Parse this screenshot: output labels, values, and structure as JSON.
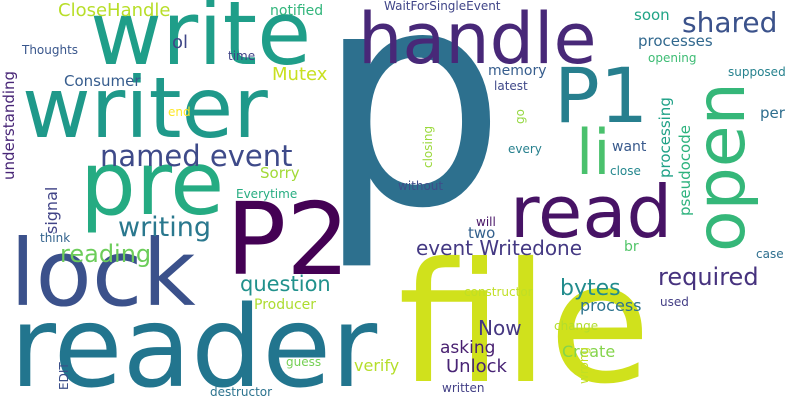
{
  "palette": {
    "p": "#2d708e",
    "file": "#d0e11c",
    "reader": "#22758e",
    "write": "#1f9e89",
    "writer": "#1f998a",
    "lock": "#3b518b",
    "pre": "#25ab82",
    "P2": "#440154",
    "P1": "#277f8e",
    "read": "#471365",
    "handle": "#482878",
    "open": "#35b779",
    "li": "#4ac16d",
    "named_event": "#3e4a89",
    "writing": "#2a788e",
    "required": "#46327e",
    "shared": "#3b528b",
    "event_writedone": "#443983",
    "reading": "#6ccd5a",
    "question": "#21918c",
    "bytes": "#228c8d",
    "now": "#453781",
    "unlock": "#482475",
    "asking": "#481f70",
    "create": "#84d44b",
    "verify": "#b5de2b",
    "closehandle": "#b8de29",
    "mutex": "#c8e020",
    "consumer": "#365c8d",
    "processes": "#31688e",
    "memory": "#365d8d",
    "process": "#2c728e",
    "processing": "#1fa187",
    "pseudocode": "#2db27d",
    "signal": "#414487",
    "understanding": "#482677",
    "sorry": "#a2da37",
    "producer": "#addc30",
    "ol": "#3f4788",
    "soon": "#20a486",
    "notified": "#31b57b",
    "per": "#2e6e8e",
    "two": "#34618d",
    "want": "#38598c",
    "thoughts": "#39568c",
    "waitforsingleevent": "#404588",
    "everytime": "#27ad81",
    "opening": "#3dbc74",
    "supposed": "#26828e",
    "latest": "#3f4889",
    "close": "#24878e",
    "without": "#3d4d8a",
    "br": "#52c569",
    "used": "#433e85",
    "case": "#2e6f8e",
    "think": "#33638d",
    "will": "#481467",
    "time": "#404387",
    "end": "#fde725",
    "every": "#27808e",
    "go": "#95d840",
    "closing": "#9bd93c",
    "edit": "#3c4f8a",
    "guess": "#75d054",
    "destructor": "#2c738e",
    "written": "#423f85",
    "constructor": "#c0df25",
    "change": "#b2dd2d",
    "wrong": "#c2df23"
  },
  "words": {
    "p": "p",
    "file": "file",
    "reader": "reader",
    "write": "write",
    "writer": "writer",
    "lock": "lock",
    "pre": "pre",
    "P2": "P2",
    "P1": "P1",
    "read": "read",
    "handle": "handle",
    "open": "open",
    "li": "li",
    "named_event": "named event",
    "writing": "writing",
    "required": "required",
    "shared": "shared",
    "event_writedone": "event Writedone",
    "reading": "reading",
    "question": "question",
    "bytes": "bytes",
    "now": "Now",
    "unlock": "Unlock",
    "asking": "asking",
    "create": "Create",
    "verify": "verify",
    "closehandle": "CloseHandle",
    "mutex": "Mutex",
    "consumer": "Consumer",
    "processes": "processes",
    "memory": "memory",
    "process": "process",
    "processing": "processing",
    "pseudocode": "pseudocode",
    "signal": "signal",
    "understanding": "understanding",
    "sorry": "Sorry",
    "producer": "Producer",
    "ol": "ol",
    "soon": "soon",
    "notified": "notified",
    "per": "per",
    "two": "two",
    "want": "want",
    "thoughts": "Thoughts",
    "waitforsingleevent": "WaitForSingleEvent",
    "everytime": "Everytime",
    "opening": "opening",
    "supposed": "supposed",
    "latest": "latest",
    "close": "close",
    "without": "without",
    "br": "br",
    "used": "used",
    "case": "case",
    "think": "think",
    "will": "will",
    "time": "time",
    "end": "end",
    "every": "every",
    "go": "go",
    "closing": "closing",
    "edit": "EDIT",
    "guess": "guess",
    "destructor": "destructor",
    "written": "written",
    "constructor": "constructor",
    "change": "change",
    "wrong": "wrong"
  }
}
